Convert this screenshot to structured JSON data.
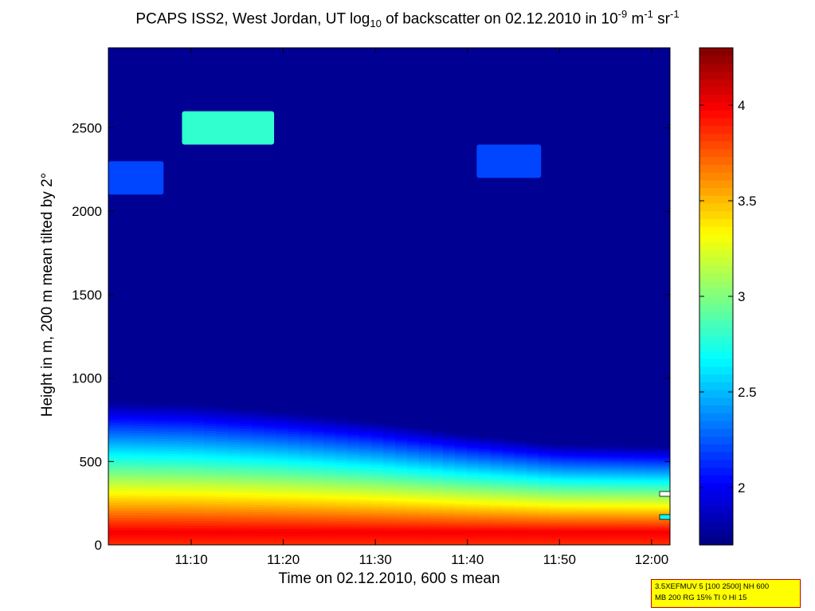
{
  "title": {
    "parts": [
      {
        "t": "PCAPS ISS2, West Jordan, UT log"
      },
      {
        "t": "10",
        "sub": true
      },
      {
        "t": " of backscatter on 02.12.2010 in 10"
      },
      {
        "t": "-9",
        "sup": true
      },
      {
        "t": " m"
      },
      {
        "t": "-1",
        "sup": true
      },
      {
        "t": " sr"
      },
      {
        "t": "-1",
        "sup": true
      }
    ]
  },
  "xlabel": "Time on 02.12.2010, 600 s mean",
  "ylabel": "Height in m, 200 m mean tilted by 2°",
  "info_box": {
    "line1": "3.5XEFMUV 5 [100 2500] NH 600",
    "line2": "MB 200 RG 15% TI 0 HI 15"
  },
  "chart_data": {
    "type": "heatmap",
    "x_range": [
      "11:01",
      "12:02"
    ],
    "x_ticks": [
      "11:10",
      "11:20",
      "11:30",
      "11:40",
      "11:50",
      "12:00"
    ],
    "y_range": [
      0,
      2980
    ],
    "y_ticks": [
      0,
      500,
      1000,
      1500,
      2000,
      2500
    ],
    "colorbar": {
      "range": [
        1.7,
        4.3
      ],
      "ticks": [
        "2",
        "2.5",
        "3",
        "3.5",
        "4"
      ],
      "colormap": "jet"
    },
    "background_level": 1.75,
    "surface_layer": {
      "time": [
        "11:01",
        "11:10",
        "11:20",
        "11:30",
        "11:40",
        "11:50",
        "12:02"
      ],
      "top_height_m": [
        600,
        590,
        560,
        520,
        470,
        430,
        420
      ],
      "peak_level": 4.0,
      "peak_height_m": 80
    },
    "features": [
      {
        "label": "",
        "time": [
          "11:09",
          "11:19"
        ],
        "height_m": [
          2400,
          2600
        ],
        "level": 2.8
      },
      {
        "label": "",
        "time": [
          "11:01",
          "11:07"
        ],
        "height_m": [
          2100,
          2300
        ],
        "level": 2.2
      },
      {
        "label": "",
        "time": [
          "11:41",
          "11:48"
        ],
        "height_m": [
          2200,
          2400
        ],
        "level": 2.2
      }
    ]
  }
}
